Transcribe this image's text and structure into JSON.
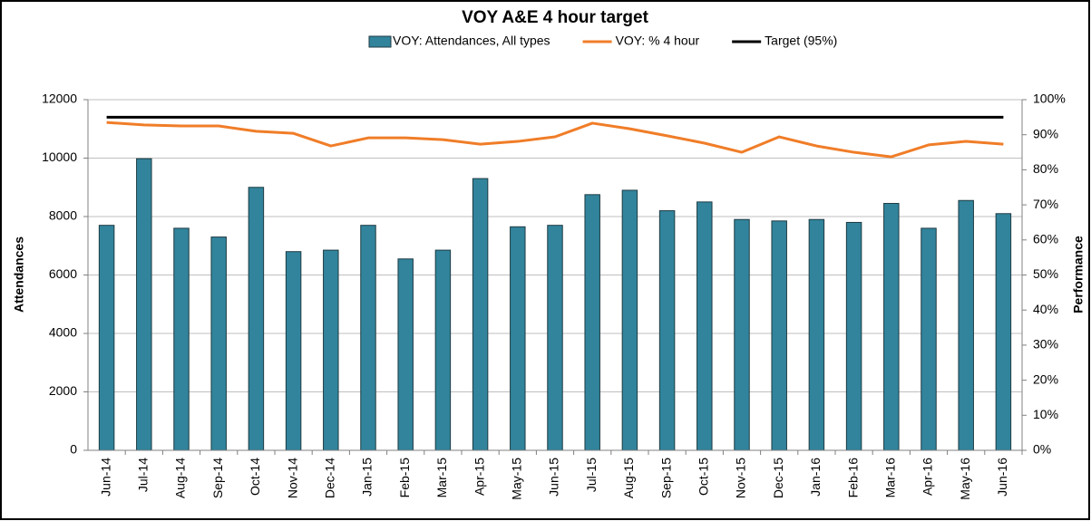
{
  "chart_data": {
    "type": "combo",
    "title": "VOY A&E 4 hour target",
    "categories": [
      "Jun-14",
      "Jul-14",
      "Aug-14",
      "Sep-14",
      "Oct-14",
      "Nov-14",
      "Dec-14",
      "Jan-15",
      "Feb-15",
      "Mar-15",
      "Apr-15",
      "May-15",
      "Jun-15",
      "Jul-15",
      "Aug-15",
      "Sep-15",
      "Oct-15",
      "Nov-15",
      "Dec-15",
      "Jan-16",
      "Feb-16",
      "Mar-16",
      "Apr-16",
      "May-16",
      "Jun-16"
    ],
    "series": [
      {
        "name": "VOY: Attendances, All types",
        "type": "bar",
        "color": "#31849b",
        "axis": "y",
        "values": [
          7700,
          9980,
          7600,
          7300,
          9000,
          6800,
          6850,
          7700,
          6550,
          6850,
          9300,
          7650,
          7700,
          8750,
          8900,
          8200,
          8500,
          7900,
          7850,
          7900,
          7800,
          8450,
          7600,
          8550,
          8100
        ]
      },
      {
        "name": "VOY: % 4 hour",
        "type": "line",
        "color": "#f07d28",
        "axis": "y2",
        "values": [
          93.5,
          92.8,
          92.5,
          92.5,
          91,
          90.4,
          86.8,
          89.1,
          89.1,
          88.6,
          87.3,
          88.1,
          89.4,
          93.3,
          91.7,
          89.7,
          87.6,
          85,
          89.4,
          86.8,
          85,
          83.7,
          87.1,
          88.1,
          87.3
        ]
      },
      {
        "name": "Target (95%)",
        "type": "line",
        "color": "#000000",
        "axis": "y2",
        "values": [
          95,
          95,
          95,
          95,
          95,
          95,
          95,
          95,
          95,
          95,
          95,
          95,
          95,
          95,
          95,
          95,
          95,
          95,
          95,
          95,
          95,
          95,
          95,
          95,
          95
        ]
      }
    ],
    "ylabel": "Attendances",
    "y2label": "Performance",
    "ylim": [
      0,
      12000
    ],
    "yticks": [
      0,
      2000,
      4000,
      6000,
      8000,
      10000,
      12000
    ],
    "y2lim": [
      0,
      100
    ],
    "y2ticks": [
      {
        "value": 0,
        "label": "0%"
      },
      {
        "value": 10,
        "label": "10%"
      },
      {
        "value": 20,
        "label": "20%"
      },
      {
        "value": 30,
        "label": "30%"
      },
      {
        "value": 40,
        "label": "40%"
      },
      {
        "value": 50,
        "label": "50%"
      },
      {
        "value": 60,
        "label": "60%"
      },
      {
        "value": 70,
        "label": "70%"
      },
      {
        "value": 80,
        "label": "80%"
      },
      {
        "value": 90,
        "label": "90%"
      },
      {
        "value": 100,
        "label": "100%"
      }
    ],
    "grid": true,
    "legend": "top"
  }
}
